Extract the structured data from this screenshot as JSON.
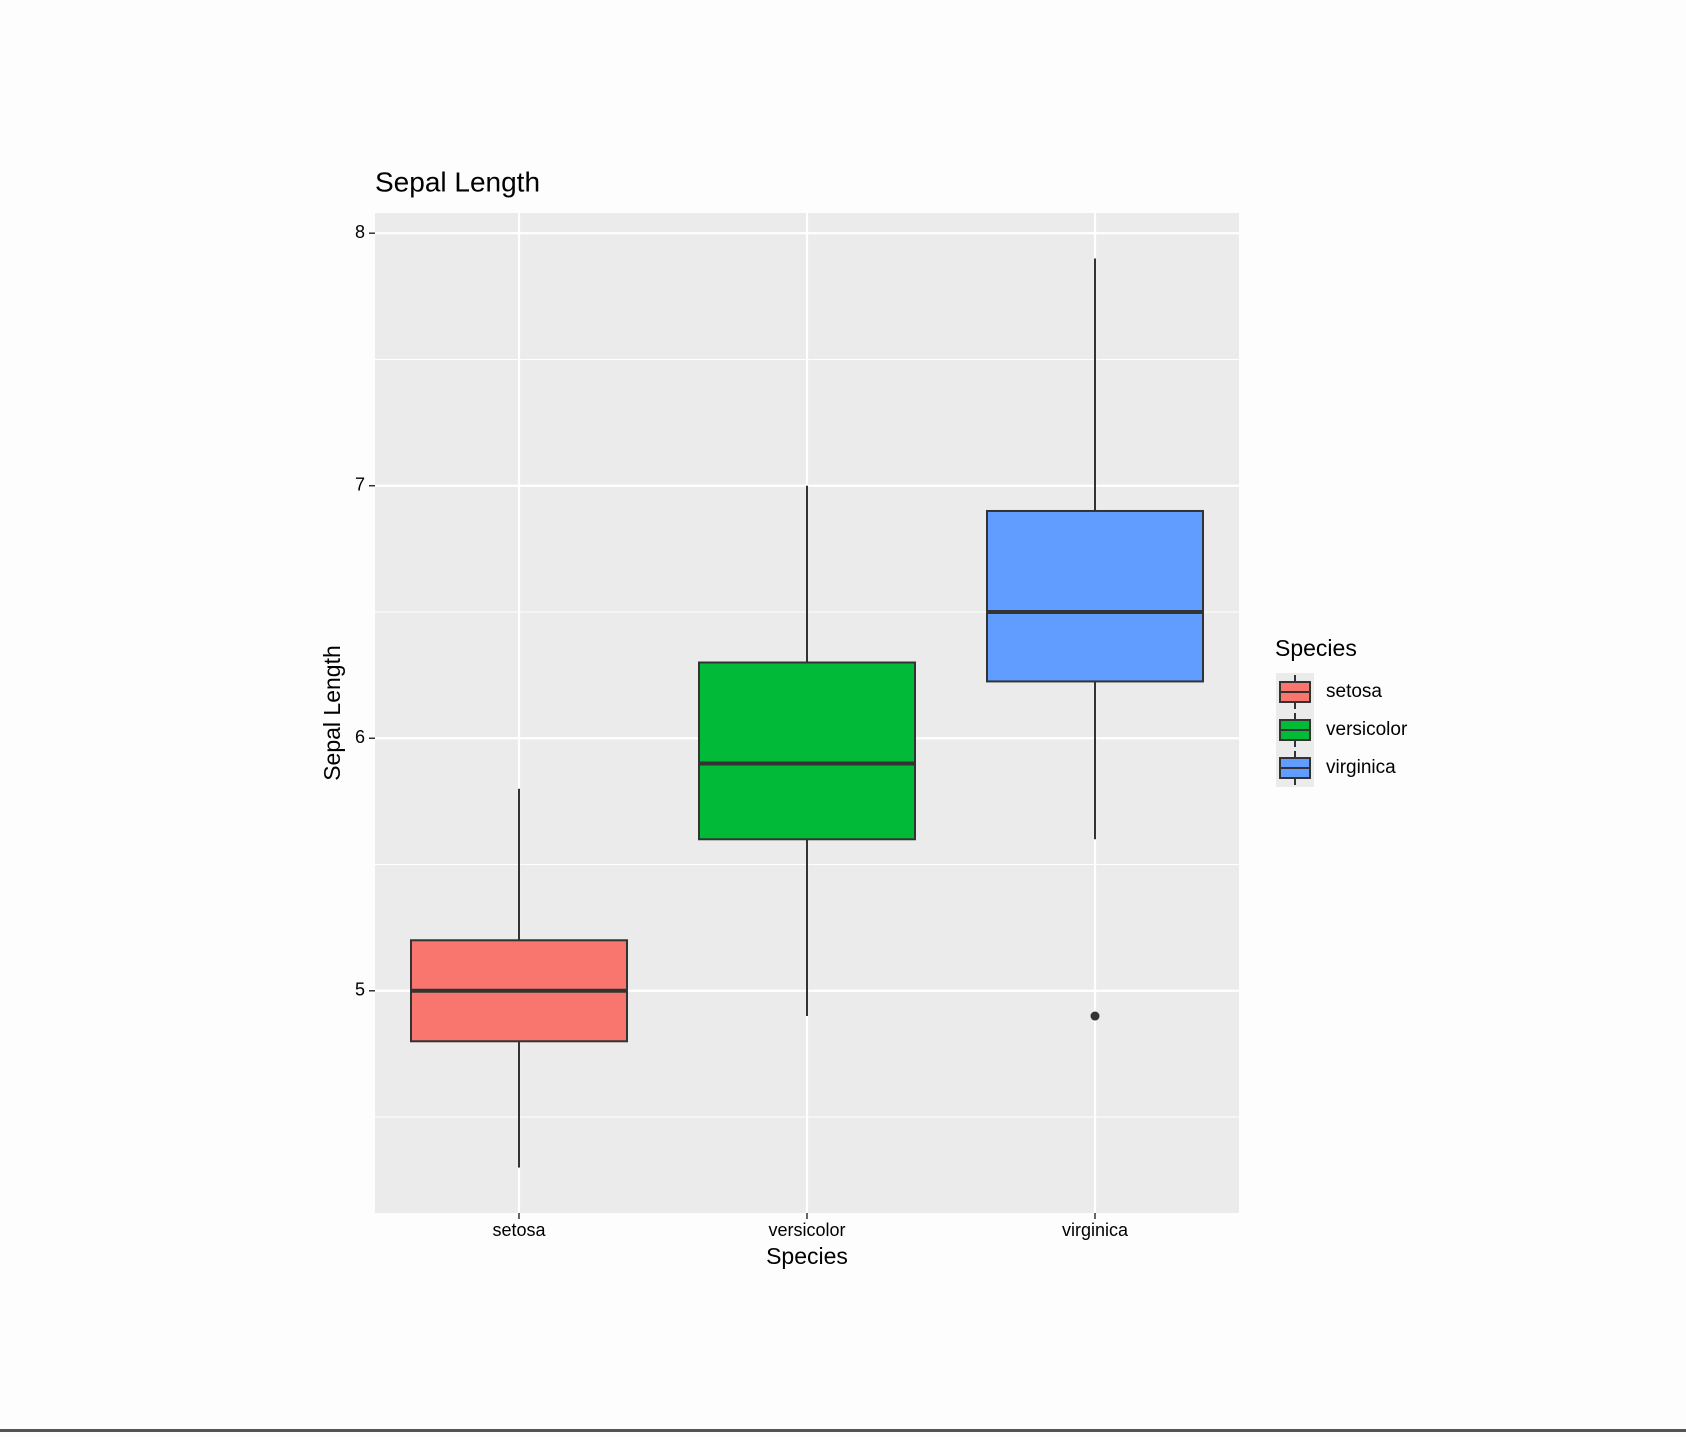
{
  "chart_data": {
    "type": "box",
    "title": "Sepal Length",
    "x_label": "Species",
    "y_label": "Sepal Length",
    "categories": [
      "setosa",
      "versicolor",
      "virginica"
    ],
    "series": [
      {
        "name": "setosa",
        "color": "#f8766d",
        "min": 4.3,
        "q1": 4.8,
        "median": 5.0,
        "q3": 5.2,
        "max": 5.8,
        "outliers": []
      },
      {
        "name": "versicolor",
        "color": "#00ba38",
        "min": 4.9,
        "q1": 5.6,
        "median": 5.9,
        "q3": 6.3,
        "max": 7.0,
        "outliers": []
      },
      {
        "name": "virginica",
        "color": "#619cff",
        "min": 5.6,
        "q1": 6.225,
        "median": 6.5,
        "q3": 6.9,
        "max": 7.9,
        "outliers": [
          4.9
        ]
      }
    ],
    "ylim": [
      4.12,
      8.08
    ],
    "yticks": [
      5,
      6,
      7,
      8
    ],
    "minor_grid": [
      4.5,
      5.5,
      6.5,
      7.5
    ],
    "grid": true,
    "legend_title": "Species",
    "legend_position": "right"
  }
}
